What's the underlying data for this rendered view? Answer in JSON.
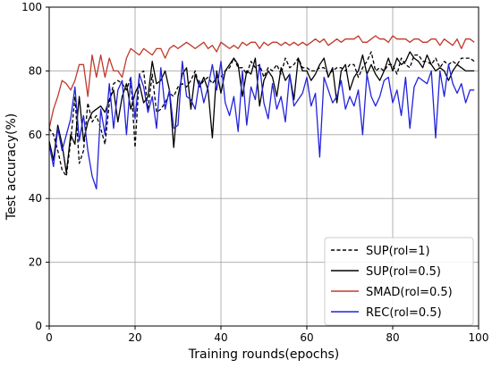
{
  "chart_data": {
    "type": "line",
    "xlabel": "Training rounds(epochs)",
    "ylabel": "Test accuracy(%)",
    "xlim": [
      0,
      100
    ],
    "ylim": [
      0,
      100
    ],
    "xticks": [
      0,
      20,
      40,
      60,
      80,
      100
    ],
    "yticks": [
      0,
      20,
      40,
      60,
      80,
      100
    ],
    "grid": true,
    "legend_position": "bottom-right",
    "series": [
      {
        "name": "SUP(rol=1)",
        "color": "#000000",
        "style": "dashed",
        "x": [
          0,
          1,
          2,
          3,
          4,
          5,
          6,
          7,
          8,
          9,
          10,
          11,
          12,
          13,
          14,
          15,
          16,
          17,
          18,
          19,
          20,
          21,
          22,
          23,
          24,
          25,
          26,
          27,
          28,
          29,
          30,
          31,
          32,
          33,
          34,
          35,
          36,
          37,
          38,
          39,
          40,
          41,
          42,
          43,
          44,
          45,
          46,
          47,
          48,
          49,
          50,
          51,
          52,
          53,
          54,
          55,
          56,
          57,
          58,
          59,
          60,
          61,
          62,
          63,
          64,
          65,
          66,
          67,
          68,
          69,
          70,
          71,
          72,
          73,
          74,
          75,
          76,
          77,
          78,
          79,
          80,
          81,
          82,
          83,
          84,
          85,
          86,
          87,
          88,
          89,
          90,
          91,
          92,
          93,
          94,
          95,
          96,
          97,
          98,
          99
        ],
        "values": [
          62,
          60,
          55,
          49,
          47,
          58,
          72,
          51,
          55,
          70,
          64,
          66,
          62,
          57,
          70,
          76,
          77,
          76,
          74,
          78,
          56,
          79,
          80,
          68,
          79,
          67,
          68,
          70,
          73,
          72,
          75,
          76,
          75,
          77,
          80,
          75,
          77,
          78,
          76,
          78,
          78,
          80,
          81,
          84,
          81,
          81,
          79,
          83,
          81,
          82,
          78,
          81,
          80,
          82,
          79,
          84,
          81,
          82,
          84,
          81,
          81,
          80,
          80,
          81,
          81,
          79,
          80,
          81,
          81,
          80,
          82,
          82,
          78,
          81,
          83,
          86,
          80,
          81,
          80,
          82,
          82,
          79,
          84,
          82,
          81,
          85,
          85,
          83,
          83,
          82,
          84,
          81,
          83,
          82,
          83,
          82,
          84,
          84,
          84,
          83
        ]
      },
      {
        "name": "SUP(rol=0.5)",
        "color": "#000000",
        "style": "solid",
        "x": [
          0,
          1,
          2,
          3,
          4,
          5,
          6,
          7,
          8,
          9,
          10,
          11,
          12,
          13,
          14,
          15,
          16,
          17,
          18,
          19,
          20,
          21,
          22,
          23,
          24,
          25,
          26,
          27,
          28,
          29,
          30,
          31,
          32,
          33,
          34,
          35,
          36,
          37,
          38,
          39,
          40,
          41,
          42,
          43,
          44,
          45,
          46,
          47,
          48,
          49,
          50,
          51,
          52,
          53,
          54,
          55,
          56,
          57,
          58,
          59,
          60,
          61,
          62,
          63,
          64,
          65,
          66,
          67,
          68,
          69,
          70,
          71,
          72,
          73,
          74,
          75,
          76,
          77,
          78,
          79,
          80,
          81,
          82,
          83,
          84,
          85,
          86,
          87,
          88,
          89,
          90,
          91,
          92,
          93,
          94,
          95,
          96,
          97,
          98,
          99
        ],
        "values": [
          58,
          52,
          63,
          57,
          48,
          60,
          57,
          72,
          58,
          64,
          67,
          68,
          69,
          67,
          71,
          74,
          64,
          72,
          76,
          68,
          73,
          76,
          70,
          72,
          83,
          76,
          77,
          80,
          74,
          56,
          72,
          79,
          81,
          68,
          79,
          75,
          78,
          74,
          59,
          80,
          73,
          80,
          82,
          84,
          82,
          72,
          80,
          79,
          84,
          69,
          77,
          80,
          78,
          72,
          81,
          77,
          79,
          71,
          84,
          80,
          80,
          77,
          79,
          82,
          84,
          78,
          81,
          70,
          80,
          82,
          74,
          78,
          80,
          85,
          79,
          82,
          79,
          77,
          80,
          84,
          80,
          84,
          82,
          83,
          86,
          84,
          83,
          81,
          85,
          82,
          80,
          81,
          80,
          77,
          80,
          82,
          81,
          80,
          80,
          80
        ]
      },
      {
        "name": "SMAD(rol=0.5)",
        "color": "#c0392b",
        "style": "solid",
        "x": [
          0,
          1,
          2,
          3,
          4,
          5,
          6,
          7,
          8,
          9,
          10,
          11,
          12,
          13,
          14,
          15,
          16,
          17,
          18,
          19,
          20,
          21,
          22,
          23,
          24,
          25,
          26,
          27,
          28,
          29,
          30,
          31,
          32,
          33,
          34,
          35,
          36,
          37,
          38,
          39,
          40,
          41,
          42,
          43,
          44,
          45,
          46,
          47,
          48,
          49,
          50,
          51,
          52,
          53,
          54,
          55,
          56,
          57,
          58,
          59,
          60,
          61,
          62,
          63,
          64,
          65,
          66,
          67,
          68,
          69,
          70,
          71,
          72,
          73,
          74,
          75,
          76,
          77,
          78,
          79,
          80,
          81,
          82,
          83,
          84,
          85,
          86,
          87,
          88,
          89,
          90,
          91,
          92,
          93,
          94,
          95,
          96,
          97,
          98,
          99
        ],
        "values": [
          62,
          68,
          72,
          77,
          76,
          74,
          77,
          82,
          82,
          72,
          85,
          78,
          85,
          78,
          84,
          80,
          80,
          78,
          84,
          87,
          86,
          85,
          87,
          86,
          85,
          87,
          87,
          84,
          87,
          88,
          87,
          88,
          89,
          88,
          87,
          88,
          89,
          87,
          88,
          86,
          89,
          88,
          87,
          88,
          87,
          89,
          88,
          89,
          89,
          87,
          89,
          88,
          89,
          89,
          88,
          89,
          88,
          89,
          88,
          89,
          88,
          89,
          90,
          89,
          90,
          88,
          89,
          90,
          89,
          90,
          90,
          90,
          91,
          89,
          89,
          90,
          91,
          90,
          90,
          89,
          91,
          90,
          90,
          90,
          89,
          90,
          90,
          89,
          89,
          90,
          90,
          88,
          90,
          89,
          88,
          90,
          87,
          90,
          90,
          89
        ]
      },
      {
        "name": "REC(rol=0.5)",
        "color": "#2222dd",
        "style": "solid",
        "x": [
          0,
          1,
          2,
          3,
          4,
          5,
          6,
          7,
          8,
          9,
          10,
          11,
          12,
          13,
          14,
          15,
          16,
          17,
          18,
          19,
          20,
          21,
          22,
          23,
          24,
          25,
          26,
          27,
          28,
          29,
          30,
          31,
          32,
          33,
          34,
          35,
          36,
          37,
          38,
          39,
          40,
          41,
          42,
          43,
          44,
          45,
          46,
          47,
          48,
          49,
          50,
          51,
          52,
          53,
          54,
          55,
          56,
          57,
          58,
          59,
          60,
          61,
          62,
          63,
          64,
          65,
          66,
          67,
          68,
          69,
          70,
          71,
          72,
          73,
          74,
          75,
          76,
          77,
          78,
          79,
          80,
          81,
          82,
          83,
          84,
          85,
          86,
          87,
          88,
          89,
          90,
          91,
          92,
          93,
          94,
          95,
          96,
          97,
          98,
          99
        ],
        "values": [
          57,
          50,
          62,
          55,
          60,
          65,
          75,
          58,
          66,
          55,
          47,
          43,
          68,
          60,
          76,
          62,
          74,
          77,
          60,
          78,
          65,
          79,
          75,
          67,
          72,
          62,
          81,
          68,
          74,
          62,
          63,
          83,
          72,
          71,
          68,
          77,
          70,
          75,
          82,
          74,
          83,
          70,
          66,
          72,
          61,
          80,
          63,
          75,
          71,
          82,
          70,
          65,
          76,
          68,
          72,
          64,
          79,
          69,
          71,
          73,
          78,
          69,
          73,
          53,
          78,
          74,
          70,
          72,
          77,
          68,
          72,
          69,
          74,
          60,
          79,
          72,
          69,
          72,
          77,
          78,
          70,
          74,
          66,
          78,
          62,
          75,
          78,
          77,
          76,
          80,
          59,
          80,
          72,
          82,
          76,
          73,
          76,
          70,
          74,
          74
        ]
      }
    ]
  }
}
